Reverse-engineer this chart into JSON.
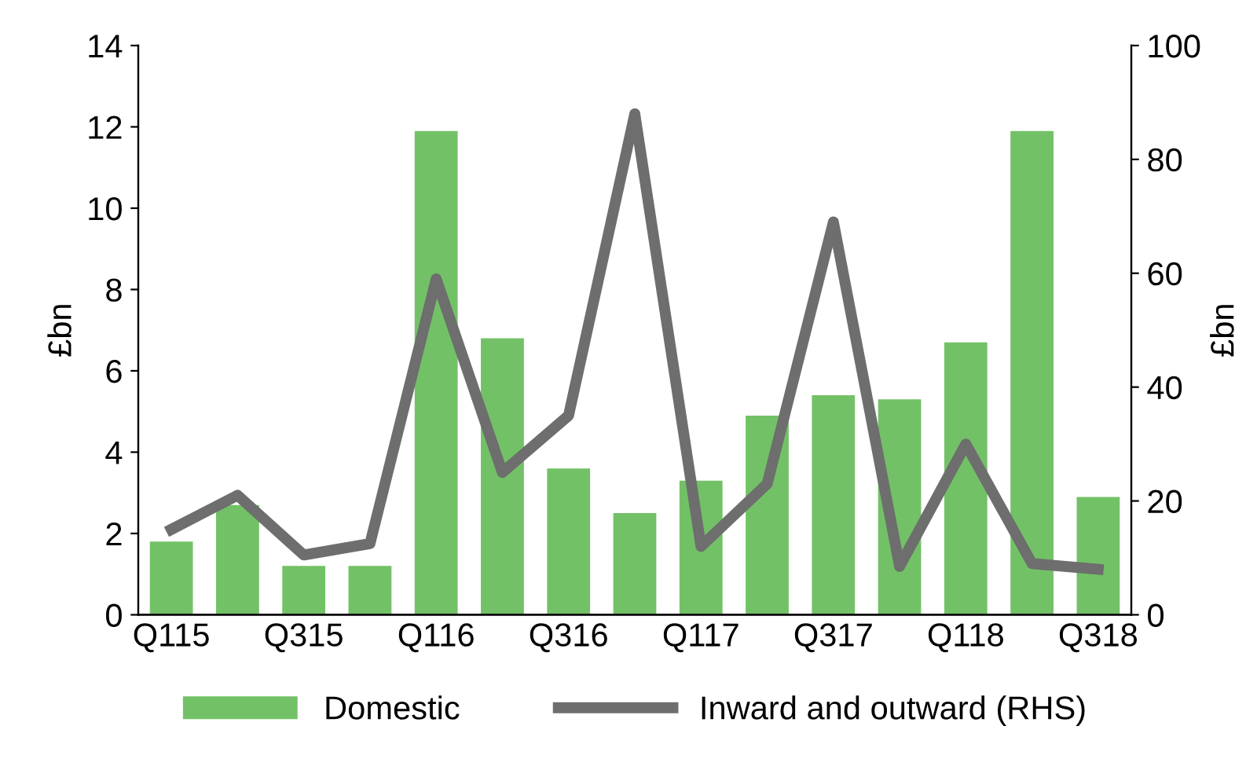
{
  "chart_data": {
    "type": "bar",
    "categories": [
      "Q115",
      null,
      "Q315",
      null,
      "Q116",
      null,
      "Q316",
      null,
      "Q117",
      null,
      "Q317",
      null,
      "Q118",
      null,
      "Q318"
    ],
    "series": [
      {
        "name": "Domestic",
        "color": "#73c167",
        "values": [
          1.8,
          2.7,
          1.2,
          1.2,
          11.9,
          6.8,
          3.6,
          2.5,
          3.3,
          4.9,
          5.4,
          5.3,
          6.7,
          11.9,
          2.9
        ]
      },
      {
        "name": "Inward and outward (RHS)",
        "type": "line",
        "axis": "y2",
        "color": "#6e6e6e",
        "values": [
          15,
          21,
          10.5,
          12.5,
          59,
          25,
          35,
          88,
          12,
          23,
          69,
          8.5,
          30,
          9,
          8
        ]
      }
    ],
    "ylabel": "£bn",
    "y2label": "£bn",
    "ylim": [
      0,
      14
    ],
    "yticks": [
      0,
      2,
      4,
      6,
      8,
      10,
      12,
      14
    ],
    "y2lim": [
      0,
      100
    ],
    "y2ticks": [
      0,
      20,
      40,
      60,
      80,
      100
    ],
    "grid": false,
    "legend": "bottom",
    "marker": "none",
    "line_style": "solid"
  }
}
